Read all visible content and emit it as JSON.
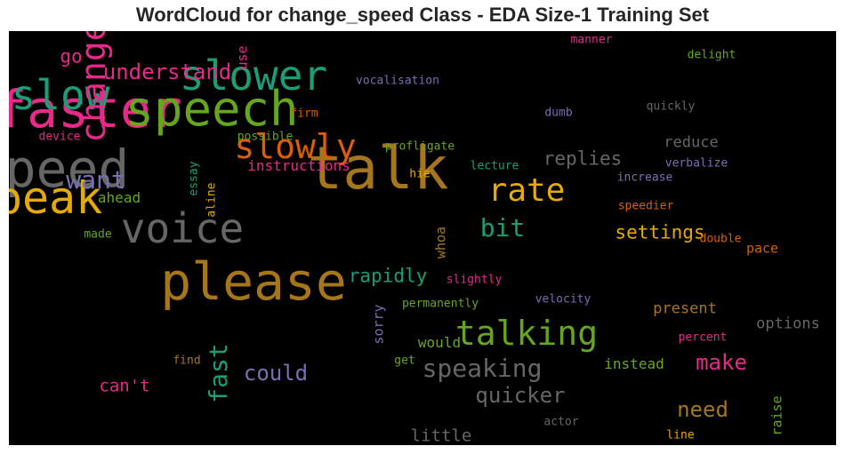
{
  "title": "WordCloud for change_speed Class - EDA Size-1 Training Set",
  "chart_data": {
    "type": "wordcloud",
    "title": "WordCloud for change_speed Class - EDA Size-1 Training Set",
    "background": "#000000",
    "palette": "Dark2",
    "words": [
      {
        "text": "talk",
        "size": 66,
        "color": "#a6761d",
        "vertical": false
      },
      {
        "text": "please",
        "size": 58,
        "color": "#a6761d",
        "vertical": false
      },
      {
        "text": "speed",
        "size": 58,
        "color": "#666666",
        "vertical": false
      },
      {
        "text": "faster",
        "size": 58,
        "color": "#e7298a",
        "vertical": false
      },
      {
        "text": "speech",
        "size": 54,
        "color": "#66a61e",
        "vertical": false
      },
      {
        "text": "speak",
        "size": 50,
        "color": "#e6ab02",
        "vertical": false
      },
      {
        "text": "voice",
        "size": 46,
        "color": "#666666",
        "vertical": false
      },
      {
        "text": "slower",
        "size": 46,
        "color": "#1b9e77",
        "vertical": false
      },
      {
        "text": "slow",
        "size": 46,
        "color": "#1b9e77",
        "vertical": false
      },
      {
        "text": "change",
        "size": 38,
        "color": "#e7298a",
        "vertical": true
      },
      {
        "text": "slowly",
        "size": 38,
        "color": "#d95f02",
        "vertical": false
      },
      {
        "text": "talking",
        "size": 38,
        "color": "#66a61e",
        "vertical": false
      },
      {
        "text": "rate",
        "size": 36,
        "color": "#e6ab02",
        "vertical": false
      },
      {
        "text": "speaking",
        "size": 28,
        "color": "#666666",
        "vertical": false
      },
      {
        "text": "want",
        "size": 28,
        "color": "#7570b3",
        "vertical": false
      },
      {
        "text": "fast",
        "size": 28,
        "color": "#1b9e77",
        "vertical": true
      },
      {
        "text": "bit",
        "size": 28,
        "color": "#1b9e77",
        "vertical": false
      },
      {
        "text": "understand",
        "size": 24,
        "color": "#e7298a",
        "vertical": false
      },
      {
        "text": "could",
        "size": 24,
        "color": "#7570b3",
        "vertical": false
      },
      {
        "text": "quicker",
        "size": 24,
        "color": "#666666",
        "vertical": false
      },
      {
        "text": "need",
        "size": 24,
        "color": "#a6761d",
        "vertical": false
      },
      {
        "text": "make",
        "size": 24,
        "color": "#e7298a",
        "vertical": false
      },
      {
        "text": "replies",
        "size": 21,
        "color": "#666666",
        "vertical": false
      },
      {
        "text": "rapidly",
        "size": 21,
        "color": "#1b9e77",
        "vertical": false
      },
      {
        "text": "settings",
        "size": 21,
        "color": "#e6ab02",
        "vertical": false
      },
      {
        "text": "go",
        "size": 21,
        "color": "#e7298a",
        "vertical": false
      },
      {
        "text": "can't",
        "size": 19,
        "color": "#e7298a",
        "vertical": false
      },
      {
        "text": "little",
        "size": 19,
        "color": "#666666",
        "vertical": false
      },
      {
        "text": "reduce",
        "size": 17,
        "color": "#666666",
        "vertical": false
      },
      {
        "text": "present",
        "size": 17,
        "color": "#a6761d",
        "vertical": false
      },
      {
        "text": "options",
        "size": 17,
        "color": "#666666",
        "vertical": false
      },
      {
        "text": "instructions",
        "size": 16,
        "color": "#e7298a",
        "vertical": false
      },
      {
        "text": "ahead",
        "size": 16,
        "color": "#66a61e",
        "vertical": false
      },
      {
        "text": "would",
        "size": 16,
        "color": "#66a61e",
        "vertical": false
      },
      {
        "text": "instead",
        "size": 16,
        "color": "#66a61e",
        "vertical": false
      },
      {
        "text": "pace",
        "size": 15,
        "color": "#d95f02",
        "vertical": false
      },
      {
        "text": "sorry",
        "size": 15,
        "color": "#7570b3",
        "vertical": true
      },
      {
        "text": "whoa",
        "size": 15,
        "color": "#a6761d",
        "vertical": true
      },
      {
        "text": "raise",
        "size": 15,
        "color": "#66a61e",
        "vertical": true
      },
      {
        "text": "use",
        "size": 15,
        "color": "#e7298a",
        "vertical": true
      },
      {
        "text": "delight",
        "size": 13,
        "color": "#66a61e",
        "vertical": false
      },
      {
        "text": "manner",
        "size": 13,
        "color": "#e7298a",
        "vertical": false
      },
      {
        "text": "vocalisation",
        "size": 13,
        "color": "#7570b3",
        "vertical": false
      },
      {
        "text": "quickly",
        "size": 13,
        "color": "#666666",
        "vertical": false
      },
      {
        "text": "firm",
        "size": 13,
        "color": "#d95f02",
        "vertical": false
      },
      {
        "text": "dumb",
        "size": 13,
        "color": "#7570b3",
        "vertical": false
      },
      {
        "text": "device",
        "size": 13,
        "color": "#e7298a",
        "vertical": false
      },
      {
        "text": "possible",
        "size": 13,
        "color": "#66a61e",
        "vertical": false
      },
      {
        "text": "profligate",
        "size": 13,
        "color": "#66a61e",
        "vertical": false
      },
      {
        "text": "lecture",
        "size": 13,
        "color": "#1b9e77",
        "vertical": false
      },
      {
        "text": "verbalize",
        "size": 13,
        "color": "#7570b3",
        "vertical": false
      },
      {
        "text": "hie",
        "size": 13,
        "color": "#e6ab02",
        "vertical": false
      },
      {
        "text": "increase",
        "size": 13,
        "color": "#7570b3",
        "vertical": false
      },
      {
        "text": "essay",
        "size": 13,
        "color": "#1b9e77",
        "vertical": true
      },
      {
        "text": "aline",
        "size": 13,
        "color": "#e6ab02",
        "vertical": true
      },
      {
        "text": "speedier",
        "size": 13,
        "color": "#d95f02",
        "vertical": false
      },
      {
        "text": "double",
        "size": 13,
        "color": "#d95f02",
        "vertical": false
      },
      {
        "text": "made",
        "size": 13,
        "color": "#66a61e",
        "vertical": false
      },
      {
        "text": "slightly",
        "size": 13,
        "color": "#e7298a",
        "vertical": false
      },
      {
        "text": "velocity",
        "size": 13,
        "color": "#7570b3",
        "vertical": false
      },
      {
        "text": "permanently",
        "size": 13,
        "color": "#66a61e",
        "vertical": false
      },
      {
        "text": "percent",
        "size": 13,
        "color": "#e7298a",
        "vertical": false
      },
      {
        "text": "find",
        "size": 13,
        "color": "#a6761d",
        "vertical": false
      },
      {
        "text": "get",
        "size": 13,
        "color": "#66a61e",
        "vertical": false
      },
      {
        "text": "actor",
        "size": 13,
        "color": "#666666",
        "vertical": false
      },
      {
        "text": "line",
        "size": 13,
        "color": "#e6ab02",
        "vertical": false
      }
    ]
  }
}
